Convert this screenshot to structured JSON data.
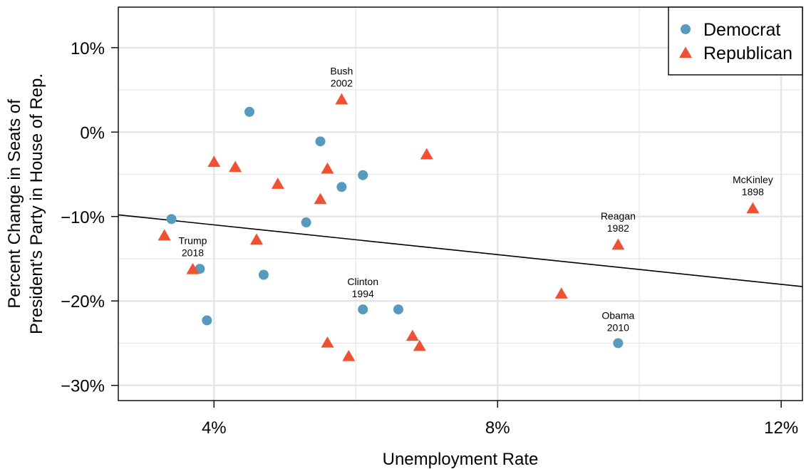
{
  "colors": {
    "democrat": "#569bbd",
    "republican": "#f05133",
    "grid": "#e6e6e6",
    "axis": "#000000"
  },
  "chart_data": {
    "type": "scatter",
    "xlabel": "Unemployment Rate",
    "ylabel_line1": "Percent Change in Seats of",
    "ylabel_line2": "President's Party in House of Rep.",
    "xlim": [
      2.65,
      12.3
    ],
    "ylim": [
      -31.8,
      14.8
    ],
    "grid": true,
    "legend_position": "top-right",
    "x_ticks": [
      {
        "value": 4,
        "label": "4%"
      },
      {
        "value": 8,
        "label": "8%"
      },
      {
        "value": 12,
        "label": "12%"
      }
    ],
    "x_minor_grid": [
      6,
      10
    ],
    "y_ticks": [
      {
        "value": 10,
        "label": "10%"
      },
      {
        "value": 0,
        "label": "0%"
      },
      {
        "value": -10,
        "label": "−10%"
      },
      {
        "value": -20,
        "label": "−20%"
      },
      {
        "value": -30,
        "label": "−30%"
      }
    ],
    "y_minor_grid": [
      5,
      -5,
      -15,
      -25
    ],
    "trend_line": {
      "x": [
        2.65,
        12.3
      ],
      "y": [
        -9.8,
        -18.3
      ]
    },
    "series": [
      {
        "name": "Democrat",
        "marker": "circle",
        "points": [
          {
            "x": 4.5,
            "y": 2.4
          },
          {
            "x": 5.5,
            "y": -1.1
          },
          {
            "x": 6.1,
            "y": -5.1
          },
          {
            "x": 5.8,
            "y": -6.5
          },
          {
            "x": 3.4,
            "y": -10.3
          },
          {
            "x": 5.3,
            "y": -10.7
          },
          {
            "x": 3.8,
            "y": -16.2
          },
          {
            "x": 4.7,
            "y": -16.9
          },
          {
            "x": 3.9,
            "y": -22.3
          },
          {
            "x": 6.1,
            "y": -21.0,
            "label1": "Clinton",
            "label2": "1994"
          },
          {
            "x": 6.6,
            "y": -21.0
          },
          {
            "x": 9.7,
            "y": -25.0,
            "label1": "Obama",
            "label2": "2010"
          }
        ]
      },
      {
        "name": "Republican",
        "marker": "triangle",
        "points": [
          {
            "x": 5.8,
            "y": 3.8,
            "label1": "Bush",
            "label2": "2002"
          },
          {
            "x": 7.0,
            "y": -2.7
          },
          {
            "x": 4.0,
            "y": -3.6
          },
          {
            "x": 4.3,
            "y": -4.2
          },
          {
            "x": 5.6,
            "y": -4.4
          },
          {
            "x": 4.9,
            "y": -6.2
          },
          {
            "x": 5.5,
            "y": -8.0
          },
          {
            "x": 3.3,
            "y": -12.3
          },
          {
            "x": 4.6,
            "y": -12.8
          },
          {
            "x": 3.7,
            "y": -16.3,
            "label1": "Trump",
            "label2": "2018"
          },
          {
            "x": 9.7,
            "y": -13.4,
            "label1": "Reagan",
            "label2": "1982"
          },
          {
            "x": 11.6,
            "y": -9.1,
            "label1": "McKinley",
            "label2": "1898"
          },
          {
            "x": 8.9,
            "y": -19.2
          },
          {
            "x": 6.8,
            "y": -24.2
          },
          {
            "x": 6.9,
            "y": -25.4
          },
          {
            "x": 5.6,
            "y": -25.0
          },
          {
            "x": 5.9,
            "y": -26.6
          }
        ]
      }
    ]
  }
}
